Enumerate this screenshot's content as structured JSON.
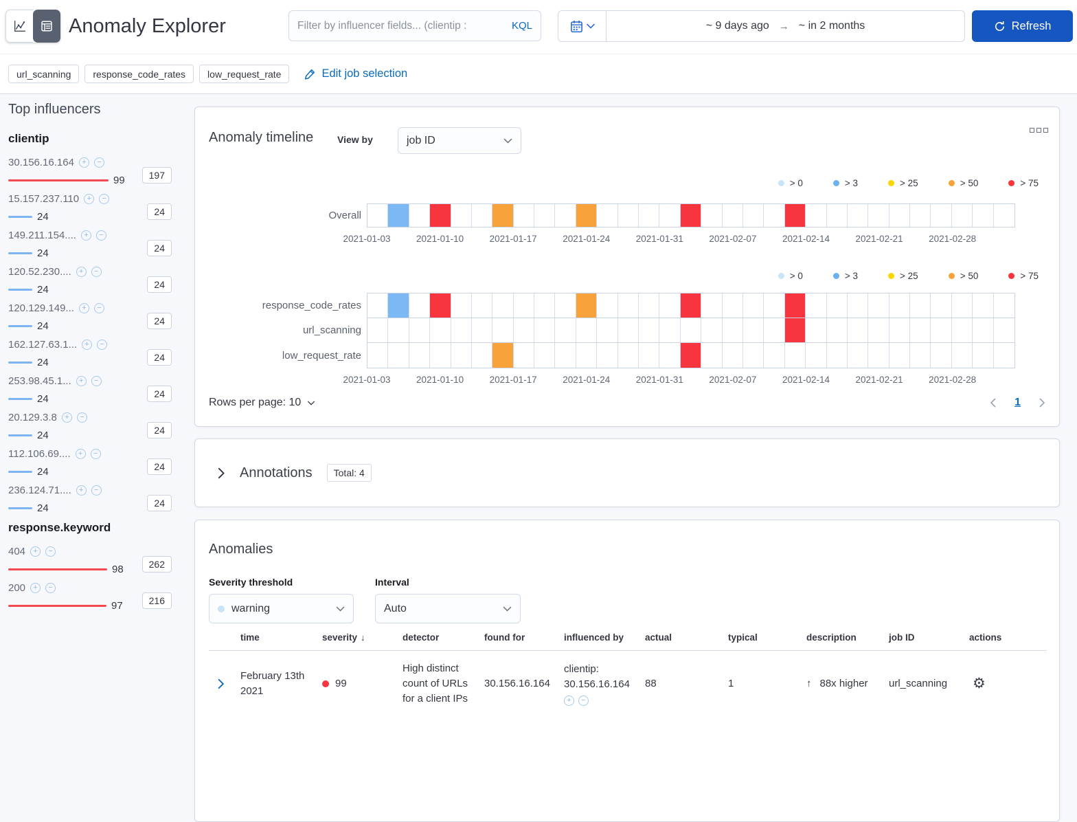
{
  "colors": {
    "critical": "#f8353f",
    "major": "#f7a23a",
    "minor": "#ffd500",
    "warning": "#6bb0f2",
    "low": "#c9e3f8",
    "bar_high": "#f6484f",
    "bar_low": "#7eb5f1",
    "cell_blue": "#7cb9f4",
    "accent_blue": "#1556c0",
    "link_blue": "#0a6bbd"
  },
  "header": {
    "title": "Anomaly Explorer",
    "filter": {
      "placeholder": "Filter by influencer fields... (clientip :",
      "kql_label": "KQL"
    },
    "time_range": {
      "from": "~ 9 days ago",
      "arrow": "→",
      "to": "~ in 2 months"
    },
    "refresh_label": "Refresh"
  },
  "jobs": {
    "badges": [
      "url_scanning",
      "response_code_rates",
      "low_request_rate"
    ],
    "edit_label": "Edit job selection"
  },
  "influencers": {
    "title": "Top influencers",
    "groups": [
      {
        "field": "clientip",
        "items": [
          {
            "name": "30.156.16.164",
            "value": 99,
            "total": 197
          },
          {
            "name": "15.157.237.110",
            "value": 24,
            "total": 24
          },
          {
            "name": "149.211.154....",
            "value": 24,
            "total": 24
          },
          {
            "name": "120.52.230....",
            "value": 24,
            "total": 24
          },
          {
            "name": "120.129.149...",
            "value": 24,
            "total": 24
          },
          {
            "name": "162.127.63.1...",
            "value": 24,
            "total": 24
          },
          {
            "name": "253.98.45.1...",
            "value": 24,
            "total": 24
          },
          {
            "name": "20.129.3.8",
            "value": 24,
            "total": 24
          },
          {
            "name": "112.106.69....",
            "value": 24,
            "total": 24
          },
          {
            "name": "236.124.71....",
            "value": 24,
            "total": 24
          }
        ]
      },
      {
        "field": "response.keyword",
        "items": [
          {
            "name": "404",
            "value": 98,
            "total": 262
          },
          {
            "name": "200",
            "value": 97,
            "total": 216
          }
        ]
      }
    ]
  },
  "timeline": {
    "title": "Anomaly timeline",
    "view_by_label": "View by",
    "view_by_value": "job ID",
    "legend": [
      {
        "label": "> 0",
        "color": "#c9e3f8"
      },
      {
        "label": "> 3",
        "color": "#6bb0f2"
      },
      {
        "label": "> 25",
        "color": "#ffd500"
      },
      {
        "label": "> 50",
        "color": "#f7a23a"
      },
      {
        "label": "> 75",
        "color": "#f8353f"
      }
    ],
    "num_cells": 31,
    "axis_labels": [
      "2021-01-03",
      "2021-01-10",
      "2021-01-17",
      "2021-01-24",
      "2021-01-31",
      "2021-02-07",
      "2021-02-14",
      "2021-02-21",
      "2021-02-28"
    ],
    "swimlanes": {
      "overall": {
        "label": "Overall",
        "cells": [
          {
            "index": 1,
            "color": "#7cb9f4"
          },
          {
            "index": 3,
            "color": "#f8353f"
          },
          {
            "index": 6,
            "color": "#f7a23a"
          },
          {
            "index": 10,
            "color": "#f7a23a"
          },
          {
            "index": 15,
            "color": "#f8353f"
          },
          {
            "index": 20,
            "color": "#f8353f"
          }
        ]
      },
      "jobs": [
        {
          "label": "response_code_rates",
          "cells": [
            {
              "index": 1,
              "color": "#7cb9f4"
            },
            {
              "index": 3,
              "color": "#f8353f"
            },
            {
              "index": 10,
              "color": "#f7a23a"
            },
            {
              "index": 15,
              "color": "#f8353f"
            },
            {
              "index": 20,
              "color": "#f8353f"
            }
          ]
        },
        {
          "label": "url_scanning",
          "cells": [
            {
              "index": 20,
              "color": "#f8353f"
            }
          ]
        },
        {
          "label": "low_request_rate",
          "cells": [
            {
              "index": 6,
              "color": "#f7a23a"
            },
            {
              "index": 15,
              "color": "#f8353f"
            }
          ]
        }
      ]
    },
    "rows_per_page_label": "Rows per page: 10",
    "pagination_page": "1"
  },
  "annotations": {
    "title": "Annotations",
    "total_badge": "Total: 4"
  },
  "anomalies": {
    "title": "Anomalies",
    "severity_label": "Severity threshold",
    "severity_value": "warning",
    "interval_label": "Interval",
    "interval_value": "Auto",
    "table": {
      "columns": [
        "time",
        "severity",
        "detector",
        "found for",
        "influenced by",
        "actual",
        "typical",
        "description",
        "job ID",
        "actions"
      ],
      "sorted_column": "severity",
      "rows": [
        {
          "time": "February 13th 2021",
          "severity": "99",
          "detector": "High distinct count of URLs for a client IPs",
          "found_for": "30.156.16.164",
          "influenced_by_field": "clientip:",
          "influenced_by_value": "30.156.16.164",
          "actual": "88",
          "typical": "1",
          "description": "88x higher",
          "job_id": "url_scanning"
        }
      ]
    }
  }
}
